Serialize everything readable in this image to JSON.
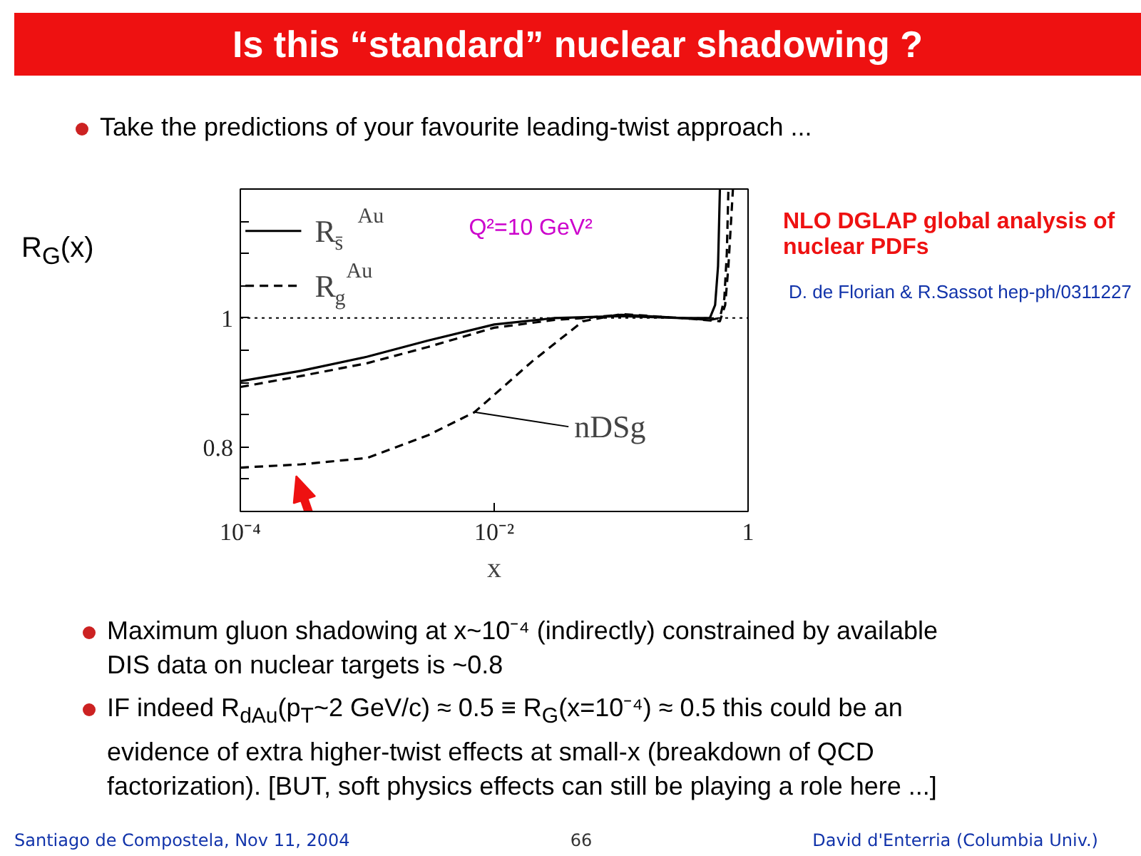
{
  "chart_data": {
    "type": "line",
    "title": "Is this “standard” nuclear shadowing ?",
    "subtitle": "Take the predictions of your favourite leading-twist approach ...",
    "xlabel": "x",
    "ylabel": "R$_{G}$(x)",
    "log": "x",
    "xlim": [
      0.0001,
      1
    ],
    "ylim": [
      0.7,
      1.2
    ],
    "xticks": [
      {
        "value": 0.0001,
        "label": "10⁻⁴"
      },
      {
        "value": 0.01,
        "label": "10⁻²"
      },
      {
        "value": 1,
        "label": "1"
      }
    ],
    "yticks": [
      {
        "value": 0.7,
        "label": null
      },
      {
        "value": 0.75,
        "label": null
      },
      {
        "value": 0.8,
        "label": "0.8"
      },
      {
        "value": 0.85,
        "label": null
      },
      {
        "value": 0.9,
        "label": null
      },
      {
        "value": 0.95,
        "label": null
      },
      {
        "value": 1,
        "label": "1"
      },
      {
        "value": 1.05,
        "label": null
      },
      {
        "value": 1.1,
        "label": null
      },
      {
        "value": 1.15,
        "label": null
      },
      {
        "value": 1.2,
        "label": null
      }
    ],
    "grid": false,
    "legend": "top left",
    "series": [
      {
        "name": "R$_{s̄}$$^{Au}$",
        "color": "#000000",
        "line_style": "solid",
        "x": [
          0.0001,
          0.0003,
          0.001,
          0.003,
          0.01,
          0.03,
          0.1,
          0.3,
          0.5,
          0.55,
          0.58,
          0.6
        ],
        "values": [
          0.902,
          0.918,
          0.94,
          0.965,
          0.99,
          1.0,
          1.003,
          1.0,
          1.0,
          1.02,
          1.08,
          1.2
        ]
      },
      {
        "name": "R$_{g}$$^{Au}$",
        "color": "#000000",
        "line_style": "dashed",
        "x": [
          0.0001,
          0.0003,
          0.001,
          0.003,
          0.01,
          0.03,
          0.05,
          0.1,
          0.3,
          0.6,
          0.66,
          0.7,
          0.76
        ],
        "values": [
          0.893,
          0.91,
          0.93,
          0.955,
          0.985,
          0.997,
          1.0,
          1.005,
          1.0,
          0.995,
          1.02,
          1.08,
          1.2
        ]
      },
      {
        "color": "#000000",
        "line_style": "dashed",
        "x": [
          0.0001,
          0.0003,
          0.001,
          0.003,
          0.007,
          0.02,
          0.05,
          0.1,
          0.3,
          0.5,
          0.6,
          0.65,
          0.68,
          0.7
        ],
        "values": [
          0.768,
          0.773,
          0.783,
          0.818,
          0.854,
          0.933,
          0.995,
          1.006,
          1.0,
          0.997,
          1.0,
          1.03,
          1.1,
          1.2
        ]
      }
    ],
    "ref_lines": [
      {
        "axis": "y",
        "value": 1,
        "color": "#000000",
        "line_style": "dotted"
      }
    ],
    "annotations": [
      "Q²=10 GeV²",
      {
        "text": "nDSg",
        "x": 0.007,
        "y": 0.854
      },
      "NLO DGLAP global analysis of nuclear PDFs",
      "D. de Florian & R.Sassot hep-ph/0311227",
      "Maximum gluon shadowing at x~10⁻⁴ (indirectly) constrained by available DIS data on nuclear targets is ~0.8",
      "IF indeed R$_{dAu}$(p$_{T}$~2 GeV/c) ≈ 0.5  ≡ R$_{G}$(x=10⁻⁴) ≈ 0.5 this could be an evidence of extra higher-twist effects at small-x (breakdown of QCD factorization). [BUT, soft physics effects can still be playing a role here ...]",
      "Santiago de Compostela, Nov 11, 2004",
      "66",
      "David d'Enterria (Columbia Univ.)"
    ]
  }
}
